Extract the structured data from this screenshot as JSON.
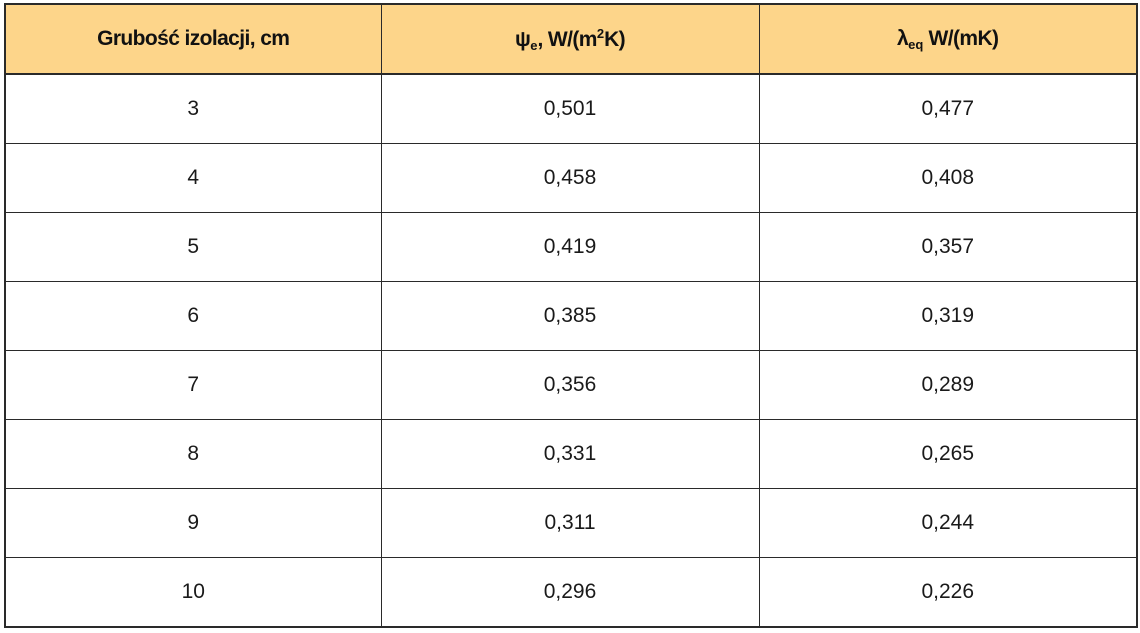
{
  "table": {
    "headers": {
      "col1": "Grubość izolacji, cm",
      "col2": {
        "symbol": "ψ",
        "subscript": "e",
        "unit_before_sup": ", W/(m",
        "superscript": "2",
        "unit_after_sup": "K)"
      },
      "col3": {
        "symbol": "λ",
        "subscript": "eq",
        "unit": " W/(mK)"
      }
    },
    "header_background": "#fdd58a",
    "rows": [
      [
        "3",
        "0,501",
        "0,477"
      ],
      [
        "4",
        "0,458",
        "0,408"
      ],
      [
        "5",
        "0,419",
        "0,357"
      ],
      [
        "6",
        "0,385",
        "0,319"
      ],
      [
        "7",
        "0,356",
        "0,289"
      ],
      [
        "8",
        "0,331",
        "0,265"
      ],
      [
        "9",
        "0,311",
        "0,244"
      ],
      [
        "10",
        "0,296",
        "0,226"
      ]
    ]
  }
}
